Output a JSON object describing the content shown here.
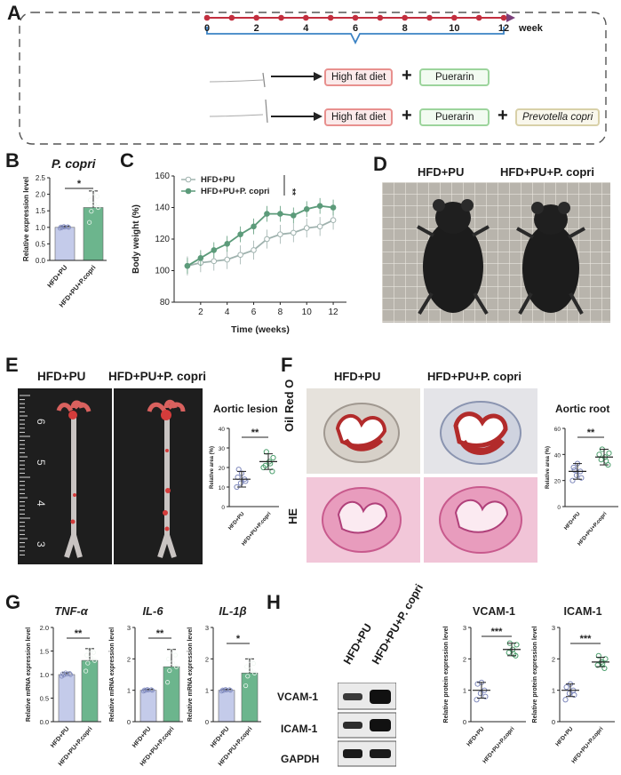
{
  "panel_labels": {
    "a": "A",
    "b": "B",
    "c": "C",
    "d": "D",
    "e": "E",
    "f": "F",
    "g": "G",
    "h": "H"
  },
  "colors": {
    "hfd_pu": "#c4cbea",
    "hfd_pu_pc": "#6cb58d",
    "line_hfd": "#9fb2ae",
    "line_pc": "#5c9b7a",
    "timeline": "#c22f3f",
    "bracket": "#3a82c4",
    "arrow": "#222222"
  },
  "panel_a": {
    "timeline_unit": "week",
    "ticks": [
      "0",
      "2",
      "4",
      "6",
      "8",
      "10",
      "12"
    ],
    "row1": {
      "diet": "High fat diet",
      "plus": "+",
      "drug": "Puerarin"
    },
    "row2": {
      "diet": "High fat diet",
      "plus1": "+",
      "drug": "Puerarin",
      "plus2": "+",
      "bacteria": "Prevotella copri"
    }
  },
  "groups": {
    "g1": "HFD+PU",
    "g2": "HFD+PU+P. copri",
    "g2_short": "HFD+PU+P.copri"
  },
  "panel_b": {
    "title": "P. copri",
    "ylabel": "Relative expression level",
    "sig": "*"
  },
  "panel_c": {
    "legend1": "HFD+PU",
    "legend2": "HFD+PU+P. copri",
    "sig": "**",
    "ylabel": "Body weight (%)",
    "xlabel": "Time (weeks)"
  },
  "panel_d": {
    "label1": "HFD+PU",
    "label2": "HFD+PU+P. copri"
  },
  "panel_e": {
    "label1": "HFD+PU",
    "label2": "HFD+PU+P. copri",
    "title": "Aortic lesion",
    "ylabel": "Relative area (%)",
    "sig": "**",
    "ruler_marks": [
      "6",
      "5",
      "4",
      "3"
    ]
  },
  "panel_f": {
    "label1": "HFD+PU",
    "label2": "HFD+PU+P. copri",
    "row1": "Oil Red O",
    "row2": "HE",
    "title": "Aortic root",
    "ylabel": "Relative area (%)",
    "sig": "**"
  },
  "panel_g": {
    "ylabel": "Relative mRNA expression level"
  },
  "panel_h": {
    "lane1": "HFD+PU",
    "lane2": "HFD+PU+P. copri",
    "blot1": "VCAM-1",
    "blot2": "ICAM-1",
    "blot3": "GAPDH",
    "ylabel": "Relative protein expression level"
  },
  "chart_data": [
    {
      "id": "b",
      "type": "bar",
      "title": "P. copri",
      "categories": [
        "HFD+PU",
        "HFD+PU+P.copri"
      ],
      "values": [
        1.0,
        1.6
      ],
      "errors": [
        0.03,
        0.5
      ],
      "ylim": [
        0,
        2.5
      ],
      "yticks": [
        "0.0",
        "0.5",
        "1.0",
        "1.5",
        "2.0",
        "2.5"
      ],
      "ylabel": "Relative expression level",
      "sig": "*"
    },
    {
      "id": "c",
      "type": "line",
      "title": "",
      "x": [
        1,
        2,
        3,
        4,
        5,
        6,
        7,
        8,
        9,
        10,
        11,
        12
      ],
      "series": [
        {
          "name": "HFD+PU",
          "values": [
            103,
            105,
            106,
            107,
            110,
            113,
            120,
            123,
            124,
            127,
            128,
            132
          ]
        },
        {
          "name": "HFD+PU+P. copri",
          "values": [
            103,
            108,
            113,
            117,
            123,
            128,
            136,
            136,
            135,
            139,
            141,
            140
          ]
        }
      ],
      "ylim": [
        80,
        160
      ],
      "xlim": [
        0,
        13
      ],
      "yticks": [
        "80",
        "100",
        "120",
        "140",
        "160"
      ],
      "xticks": [
        "2",
        "4",
        "6",
        "8",
        "10",
        "12"
      ],
      "xlabel": "Time (weeks)",
      "ylabel": "Body weight (%)"
    },
    {
      "id": "e",
      "type": "scatter",
      "title": "Aortic lesion",
      "categories": [
        "HFD+PU",
        "HFD+PU+P.copri"
      ],
      "means": [
        14,
        23
      ],
      "sd": [
        4,
        4
      ],
      "points": [
        [
          10,
          12,
          14,
          15,
          17,
          13,
          19
        ],
        [
          18,
          21,
          23,
          25,
          28,
          22,
          20
        ]
      ],
      "ylim": [
        0,
        40
      ],
      "yticks": [
        "0",
        "10",
        "20",
        "30",
        "40"
      ],
      "ylabel": "Relative area (%)",
      "sig": "**"
    },
    {
      "id": "f",
      "type": "scatter",
      "title": "Aortic root",
      "categories": [
        "HFD+PU",
        "HFD+PU+P.copri"
      ],
      "means": [
        27,
        38
      ],
      "sd": [
        6,
        6
      ],
      "points": [
        [
          20,
          24,
          27,
          30,
          33,
          22,
          28
        ],
        [
          32,
          36,
          38,
          41,
          44,
          35,
          40
        ]
      ],
      "ylim": [
        0,
        60
      ],
      "yticks": [
        "0",
        "20",
        "40",
        "60"
      ],
      "ylabel": "Relative area (%)",
      "sig": "**"
    },
    {
      "id": "g1",
      "type": "bar",
      "title": "TNF-α",
      "categories": [
        "HFD+PU",
        "HFD+PU+P.copri"
      ],
      "values": [
        1.0,
        1.3
      ],
      "errors": [
        0.04,
        0.25
      ],
      "ylim": [
        0,
        2.0
      ],
      "yticks": [
        "0.0",
        "0.5",
        "1.0",
        "1.5",
        "2.0"
      ],
      "ylabel": "Relative mRNA expression level",
      "sig": "**"
    },
    {
      "id": "g2",
      "type": "bar",
      "title": "IL-6",
      "categories": [
        "HFD+PU",
        "HFD+PU+P.copri"
      ],
      "values": [
        1.0,
        1.75
      ],
      "errors": [
        0.03,
        0.55
      ],
      "ylim": [
        0,
        3
      ],
      "yticks": [
        "0",
        "1",
        "2",
        "3"
      ],
      "ylabel": "Relative mRNA expression level",
      "sig": "**"
    },
    {
      "id": "g3",
      "type": "bar",
      "title": "IL-1β",
      "categories": [
        "HFD+PU",
        "HFD+PU+P.copri"
      ],
      "values": [
        1.0,
        1.55
      ],
      "errors": [
        0.03,
        0.45
      ],
      "ylim": [
        0,
        3
      ],
      "yticks": [
        "0",
        "1",
        "2",
        "3"
      ],
      "ylabel": "Relative mRNA expression level",
      "sig": "*"
    },
    {
      "id": "h1",
      "type": "scatter",
      "title": "VCAM-1",
      "categories": [
        "HFD+PU",
        "HFD+PU+P.copri"
      ],
      "means": [
        1.0,
        2.3
      ],
      "sd": [
        0.25,
        0.2
      ],
      "points": [
        [
          0.7,
          0.9,
          1.0,
          1.2,
          1.25,
          0.8
        ],
        [
          2.1,
          2.2,
          2.3,
          2.45,
          2.5,
          2.15
        ]
      ],
      "ylim": [
        0,
        3
      ],
      "yticks": [
        "0",
        "1",
        "2",
        "3"
      ],
      "ylabel": "Relative protein expression level",
      "sig": "***"
    },
    {
      "id": "h2",
      "type": "scatter",
      "title": "ICAM-1",
      "categories": [
        "HFD+PU",
        "HFD+PU+P.copri"
      ],
      "means": [
        1.0,
        1.9
      ],
      "sd": [
        0.2,
        0.15
      ],
      "points": [
        [
          0.7,
          0.9,
          1.0,
          1.1,
          1.2,
          0.85
        ],
        [
          1.7,
          1.8,
          1.9,
          2.0,
          2.1,
          1.85
        ]
      ],
      "ylim": [
        0,
        3
      ],
      "yticks": [
        "0",
        "1",
        "2",
        "3"
      ],
      "ylabel": "Relative protein expression level",
      "sig": "***"
    }
  ]
}
